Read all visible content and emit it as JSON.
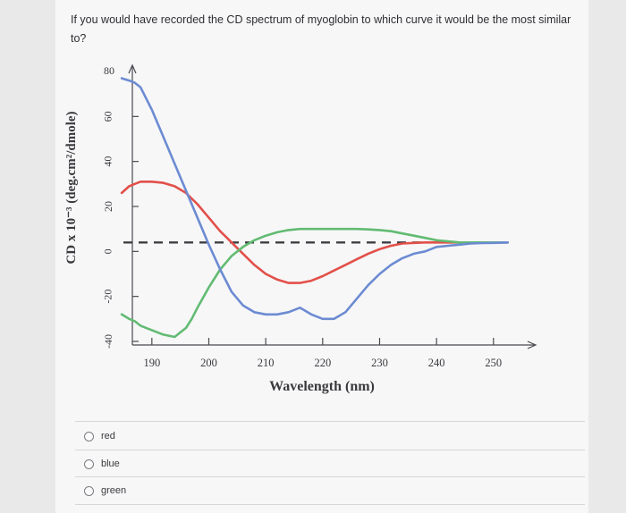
{
  "question": "If you would have recorded the CD spectrum of myoglobin to which curve it would be the most similar to?",
  "options": [
    "red",
    "blue",
    "green"
  ],
  "colors": {
    "red": "#e2504a",
    "blue": "#6c8bd2",
    "green": "#62bb72",
    "baseline": "#3d3d42"
  },
  "chart_data": {
    "type": "line",
    "xlabel": "Wavelength (nm)",
    "ylabel": "CD x 10⁻³ (deg.cm²/dmole)",
    "xlim": [
      185,
      256
    ],
    "ylim": [
      -40,
      80
    ],
    "x_ticks": [
      190,
      200,
      210,
      220,
      230,
      240,
      250
    ],
    "y_ticks": [
      80,
      60,
      40,
      20,
      0,
      -20,
      -40
    ],
    "grid": false,
    "legend": "none",
    "series": [
      {
        "color": "blue",
        "style": "solid",
        "x": [
          184.7,
          186,
          187,
          188,
          190,
          192,
          194,
          196,
          198,
          200,
          202,
          204,
          206,
          208,
          210,
          212,
          214,
          216,
          218,
          220,
          222,
          224,
          226,
          228,
          230,
          232,
          234,
          236,
          238,
          240,
          242,
          244,
          246,
          248,
          250,
          252.5
        ],
        "y": [
          77,
          76,
          75,
          73,
          63,
          51,
          39,
          27,
          15,
          3,
          -8,
          -18,
          -24,
          -27,
          -28,
          -28,
          -27,
          -25,
          -28,
          -30,
          -30,
          -27,
          -21,
          -15,
          -10,
          -6,
          -3,
          -1,
          0,
          2,
          2.5,
          3,
          3.5,
          3.7,
          3.8,
          4
        ]
      },
      {
        "color": "red",
        "style": "solid",
        "x": [
          184.7,
          186,
          187,
          188,
          190,
          192,
          194,
          196,
          198,
          200,
          202,
          204,
          206,
          208,
          210,
          212,
          214,
          216,
          218,
          220,
          222,
          224,
          226,
          228,
          230,
          232,
          234,
          236,
          238,
          240,
          242,
          244,
          246,
          248,
          250,
          252.5
        ],
        "y": [
          26,
          29,
          30,
          31,
          31,
          30.5,
          29,
          26,
          21,
          15,
          9,
          4,
          -1,
          -6,
          -10,
          -12.5,
          -14,
          -14,
          -13,
          -11,
          -8.5,
          -6,
          -3.5,
          -1,
          1,
          2.5,
          3.5,
          3.8,
          4,
          4,
          4,
          4,
          4,
          4,
          4,
          4
        ]
      },
      {
        "color": "green",
        "style": "solid",
        "x": [
          184.7,
          186,
          187,
          188,
          190,
          192,
          194,
          196,
          197,
          198,
          200,
          202,
          204,
          206,
          208,
          210,
          212,
          214,
          216,
          218,
          220,
          222,
          224,
          226,
          228,
          230,
          232,
          234,
          236,
          238,
          240,
          242,
          244,
          246,
          248,
          250,
          252.5
        ],
        "y": [
          -28,
          -30,
          -31,
          -33,
          -35,
          -37,
          -38,
          -34,
          -30,
          -25,
          -16,
          -8,
          -2,
          2,
          5,
          7,
          8.5,
          9.5,
          10,
          10,
          10,
          10,
          10,
          10,
          9.8,
          9.5,
          9,
          8,
          7,
          6,
          5,
          4.5,
          4,
          4,
          4,
          4,
          4
        ]
      },
      {
        "color": "baseline",
        "style": "dashed",
        "x": [
          185,
          252.5
        ],
        "y": [
          4,
          4
        ]
      }
    ]
  }
}
